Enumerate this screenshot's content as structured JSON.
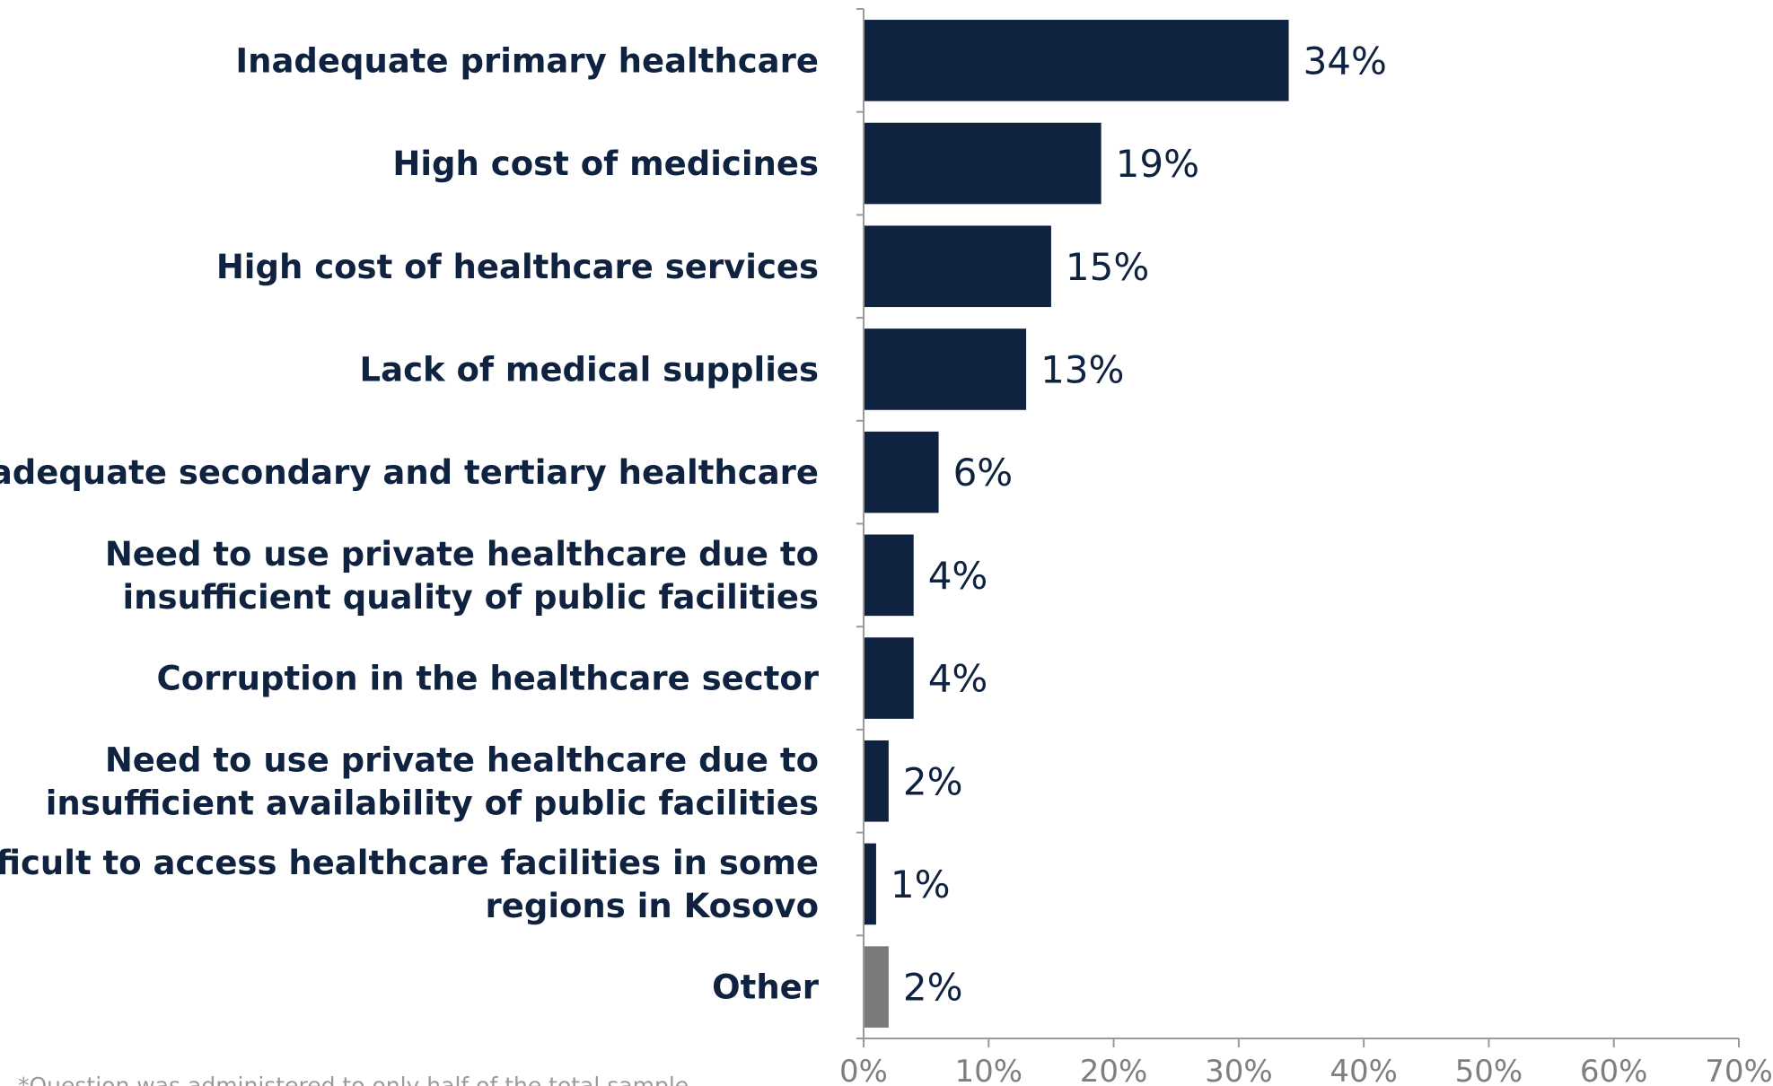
{
  "chart_data": {
    "type": "bar",
    "orientation": "horizontal",
    "categories": [
      [
        "Inadequate primary healthcare"
      ],
      [
        "High cost of medicines"
      ],
      [
        "High cost of healthcare services"
      ],
      [
        "Lack of medical supplies"
      ],
      [
        "Inadequate secondary and tertiary healthcare"
      ],
      [
        "Need to use private healthcare due to",
        "insufficient quality of public facilities"
      ],
      [
        "Corruption in the healthcare sector"
      ],
      [
        "Need to use private healthcare due to",
        "insufficient availability of public facilities"
      ],
      [
        "Difficult to access healthcare facilities in some",
        "regions in Kosovo"
      ],
      [
        "Other"
      ]
    ],
    "values": [
      34,
      19,
      15,
      13,
      6,
      4,
      4,
      2,
      1,
      2
    ],
    "value_labels": [
      "34%",
      "19%",
      "15%",
      "13%",
      "6%",
      "4%",
      "4%",
      "2%",
      "1%",
      "2%"
    ],
    "xlim": [
      0,
      70
    ],
    "xticks": [
      0,
      10,
      20,
      30,
      40,
      50,
      60,
      70
    ],
    "xtick_labels": [
      "0%",
      "10%",
      "20%",
      "30%",
      "40%",
      "50%",
      "60%",
      "70%"
    ],
    "colors": {
      "bar": "#0f2340",
      "other_bar": "#7a7a7a",
      "axis": "#9a9a9a",
      "text": "#0f2340",
      "tick_text": "#7f7f7f"
    },
    "grid": false,
    "legend": "none"
  },
  "footnote": "*Question was administered to only half of the total sample"
}
